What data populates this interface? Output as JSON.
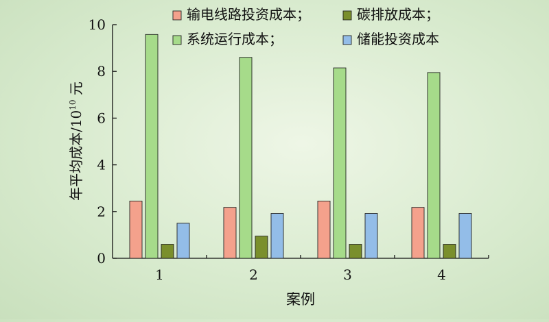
{
  "chart_data": {
    "type": "bar",
    "categories": [
      "1",
      "2",
      "3",
      "4"
    ],
    "series": [
      {
        "name": "输电线路投资成本；",
        "color": "#f4a18c",
        "values": [
          2.45,
          2.18,
          2.45,
          2.18
        ]
      },
      {
        "name": "系统运行成本；",
        "color": "#a6db8a",
        "values": [
          9.58,
          8.6,
          8.15,
          7.95
        ]
      },
      {
        "name": "碳排放成本；",
        "color": "#7a8f2c",
        "values": [
          0.6,
          0.95,
          0.6,
          0.6
        ]
      },
      {
        "name": "储能投资成本",
        "color": "#93bde8",
        "values": [
          1.5,
          1.92,
          1.92,
          1.92
        ]
      }
    ],
    "xlabel": "案例",
    "ylabel": "年平均成本/10",
    "ylabel_sup": "10",
    "ylabel_unit": " 元",
    "ylim": [
      0,
      10
    ],
    "yticks": [
      "0",
      "2",
      "4",
      "6",
      "8",
      "10"
    ],
    "grid": false,
    "legend_position": "top"
  }
}
